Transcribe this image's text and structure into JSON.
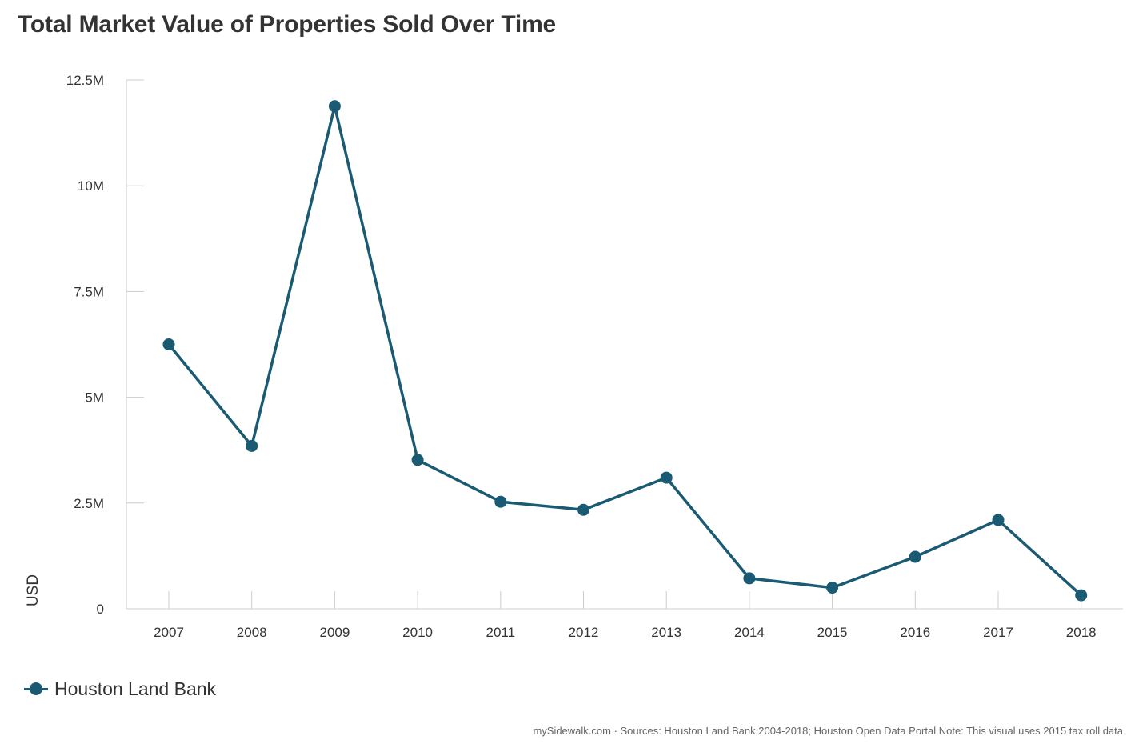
{
  "chart_data": {
    "type": "line",
    "title": "Total Market Value of Properties Sold Over Time",
    "xlabel": "",
    "ylabel": "USD",
    "categories": [
      "2007",
      "2008",
      "2009",
      "2010",
      "2011",
      "2012",
      "2013",
      "2014",
      "2015",
      "2016",
      "2017",
      "2018"
    ],
    "series": [
      {
        "name": "Houston Land Bank",
        "color": "#1a5a73",
        "values": [
          6250000,
          3850000,
          11880000,
          3520000,
          2530000,
          2340000,
          3100000,
          720000,
          500000,
          1230000,
          2100000,
          320000
        ]
      }
    ],
    "ylim": [
      0,
      12500000
    ],
    "yticks": [
      {
        "value": 0,
        "label": "0"
      },
      {
        "value": 2500000,
        "label": "2.5M"
      },
      {
        "value": 5000000,
        "label": "5M"
      },
      {
        "value": 7500000,
        "label": "7.5M"
      },
      {
        "value": 10000000,
        "label": "10M"
      },
      {
        "value": 12500000,
        "label": "12.5M"
      }
    ],
    "legend_position": "bottom-left",
    "grid": false
  },
  "footer": {
    "note": "mySidewalk.com · Sources: Houston Land Bank 2004-2018; Houston Open Data Portal Note: This visual uses 2015 tax roll data"
  }
}
